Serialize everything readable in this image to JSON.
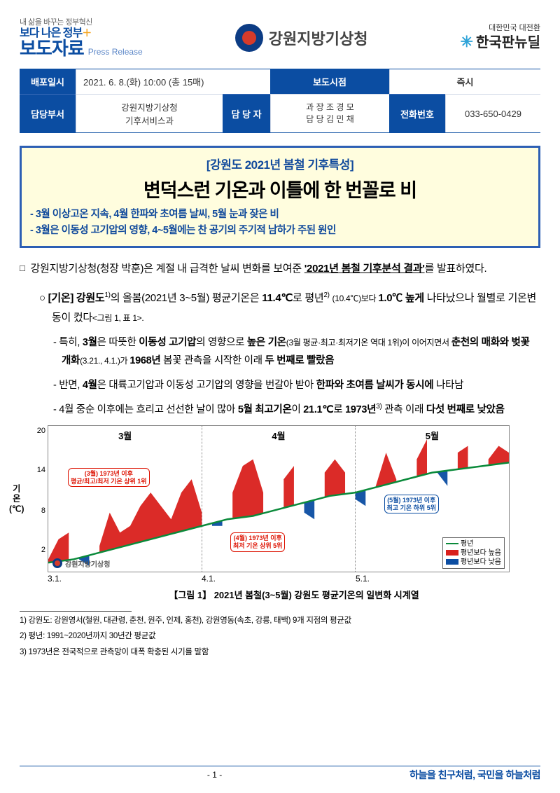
{
  "header": {
    "gov_better_html": "내 삶을 바꾸는 정부혁신",
    "gov_better_big": "보다 나은 정부",
    "press_kr": "보도자료",
    "press_en": "Press Release",
    "agency": "강원지방기상청",
    "nd_small": "대한민국 대전환",
    "nd_text": "한국판뉴딜"
  },
  "info": {
    "labels": {
      "dist_date": "배포일시",
      "release_time": "보도시점",
      "dept": "담당부서",
      "contact": "담 당 자",
      "phone": "전화번호"
    },
    "dist_date": "2021. 6. 8.(화) 10:00 (총 15매)",
    "release_time": "즉시",
    "dept": "강원지방기상청\n기후서비스과",
    "contact": "과  장  조 경 모\n담  당  김 민 채",
    "phone": "033-650-0429"
  },
  "title": {
    "sup": "[강원도 2021년 봄철 기후특성]",
    "main": "변덕스런 기온과 이틀에 한 번꼴로 비",
    "sub1": "- 3월 이상고온 지속, 4월 한파와 초여름 날씨, 5월 눈과 잦은 비",
    "sub2": "- 3월은 이동성 고기압의 영향, 4~5월에는 찬 공기의 주기적 남하가 주된 원인"
  },
  "body": {
    "p1_a": "강원지방기상청(청장 박훈)은 계절 내 급격한 날씨 변화를 보여준 ",
    "p1_b": "'2021년 봄철 기후분석 결과'",
    "p1_c": "를 발표하였다.",
    "li1_a": "[기온] 강원도",
    "li1_b": "의 올봄(2021년 3~5월) 평균기온은 ",
    "li1_c": "11.4℃",
    "li1_d": "로 평년",
    "li1_e": "(10.4℃)보다 ",
    "li1_f": "1.0℃ 높게",
    "li1_g": " 나타났으나 월별로 기온변동이 컸다",
    "li1_h": "<그림 1, 표 1>.",
    "d1_a": "특히, ",
    "d1_b": "3월",
    "d1_c": "은 따뜻한 ",
    "d1_d": "이동성 고기압",
    "d1_e": "의 영향으로 ",
    "d1_f": "높은 기온",
    "d1_g": "(3월 평균·최고·최저기온 역대 1위)이 이어지면서 ",
    "d1_h": "춘천의 매화와 벚꽃 개화",
    "d1_i": "(3.21., 4.1.)가 ",
    "d1_j": "1968년",
    "d1_k": " 봄꽃 관측을 시작한 이래 ",
    "d1_l": "두 번째로 빨랐음",
    "d2_a": "반면, ",
    "d2_b": "4월",
    "d2_c": "은 대륙고기압과 이동성 고기압의 영향을 번갈아 받아 ",
    "d2_d": "한파와 초여름 날씨가 동시에",
    "d2_e": " 나타남",
    "d3_a": "4월 중순 이후에는 흐리고 선선한 날이 많아 ",
    "d3_b": "5월 최고기온",
    "d3_c": "이 ",
    "d3_d": "21.1℃",
    "d3_e": "로 ",
    "d3_f": "1973년",
    "d3_g": " 관측 이래 ",
    "d3_h": "다섯 번째로 낮았음"
  },
  "chart": {
    "type": "line",
    "title": "【그림 1】 2021년 봄철(3~5월) 강원도 평균기온의 일변화 시계열",
    "months": [
      "3월",
      "4월",
      "5월"
    ],
    "y_label": "기\n온\n(℃)",
    "ylim": [
      0,
      22
    ],
    "yticks": [
      2,
      8,
      14,
      20
    ],
    "x_ticks": [
      "3.1.",
      "4.1.",
      "5.1."
    ],
    "colors": {
      "normal_line": "#0a8a3a",
      "above": "#d9201c",
      "below": "#0b4da2",
      "month_divider": "#888888",
      "background": "#ffffff"
    },
    "line_width": 2,
    "normal_points": [
      [
        0,
        1.5
      ],
      [
        5,
        2
      ],
      [
        10,
        3
      ],
      [
        15,
        4
      ],
      [
        20,
        5
      ],
      [
        25,
        6
      ],
      [
        30,
        7
      ],
      [
        35,
        8
      ],
      [
        40,
        8.5
      ],
      [
        45,
        9.5
      ],
      [
        50,
        10.5
      ],
      [
        55,
        11.5
      ],
      [
        60,
        12
      ],
      [
        65,
        13
      ],
      [
        70,
        14
      ],
      [
        75,
        15
      ],
      [
        80,
        15.5
      ],
      [
        85,
        16
      ],
      [
        90,
        16.5
      ]
    ],
    "obs_points": [
      [
        0,
        2
      ],
      [
        2,
        5
      ],
      [
        4,
        6
      ],
      [
        6,
        2
      ],
      [
        8,
        1
      ],
      [
        10,
        4
      ],
      [
        12,
        9
      ],
      [
        14,
        6
      ],
      [
        16,
        7
      ],
      [
        18,
        10
      ],
      [
        20,
        12
      ],
      [
        22,
        10
      ],
      [
        24,
        8
      ],
      [
        26,
        12
      ],
      [
        28,
        14
      ],
      [
        30,
        9
      ],
      [
        32,
        7
      ],
      [
        34,
        7
      ],
      [
        36,
        12
      ],
      [
        38,
        16
      ],
      [
        40,
        17
      ],
      [
        42,
        12
      ],
      [
        44,
        8
      ],
      [
        46,
        14
      ],
      [
        48,
        16
      ],
      [
        50,
        9
      ],
      [
        52,
        8
      ],
      [
        54,
        15
      ],
      [
        56,
        17
      ],
      [
        58,
        15
      ],
      [
        60,
        11
      ],
      [
        62,
        10
      ],
      [
        64,
        13
      ],
      [
        66,
        18
      ],
      [
        68,
        14
      ],
      [
        70,
        11
      ],
      [
        72,
        17
      ],
      [
        74,
        20
      ],
      [
        76,
        15
      ],
      [
        78,
        13
      ],
      [
        80,
        18
      ],
      [
        82,
        19
      ],
      [
        84,
        15
      ],
      [
        86,
        17
      ],
      [
        88,
        19
      ],
      [
        90,
        18
      ]
    ],
    "callouts": {
      "march": "(3월) 1973년 이후\n평균/최고/최저 기온 상위 1위",
      "april": "(4월) 1973년 이후\n최저 기온 상위 5위",
      "may": "(5월) 1973년 이후\n최고 기온 하위 5위"
    },
    "legend": {
      "normal": "평년",
      "above": "평년보다 높음",
      "below": "평년보다 낮음"
    },
    "logo_text": "강원지방기상청"
  },
  "footnotes": {
    "f1": "1) 강원도: 강원영서(철원, 대관령, 춘천, 원주, 인제, 홍천), 강원영동(속초, 강릉, 태백) 9개 지점의 평균값",
    "f2": "2) 평년: 1991~2020년까지 30년간 평균값",
    "f3": "3) 1973년은 전국적으로 관측망이 대폭 확충된 시기를 말함"
  },
  "footer": {
    "page": "- 1 -",
    "slogan": "하늘을 친구처럼, 국민을 하늘처럼"
  }
}
